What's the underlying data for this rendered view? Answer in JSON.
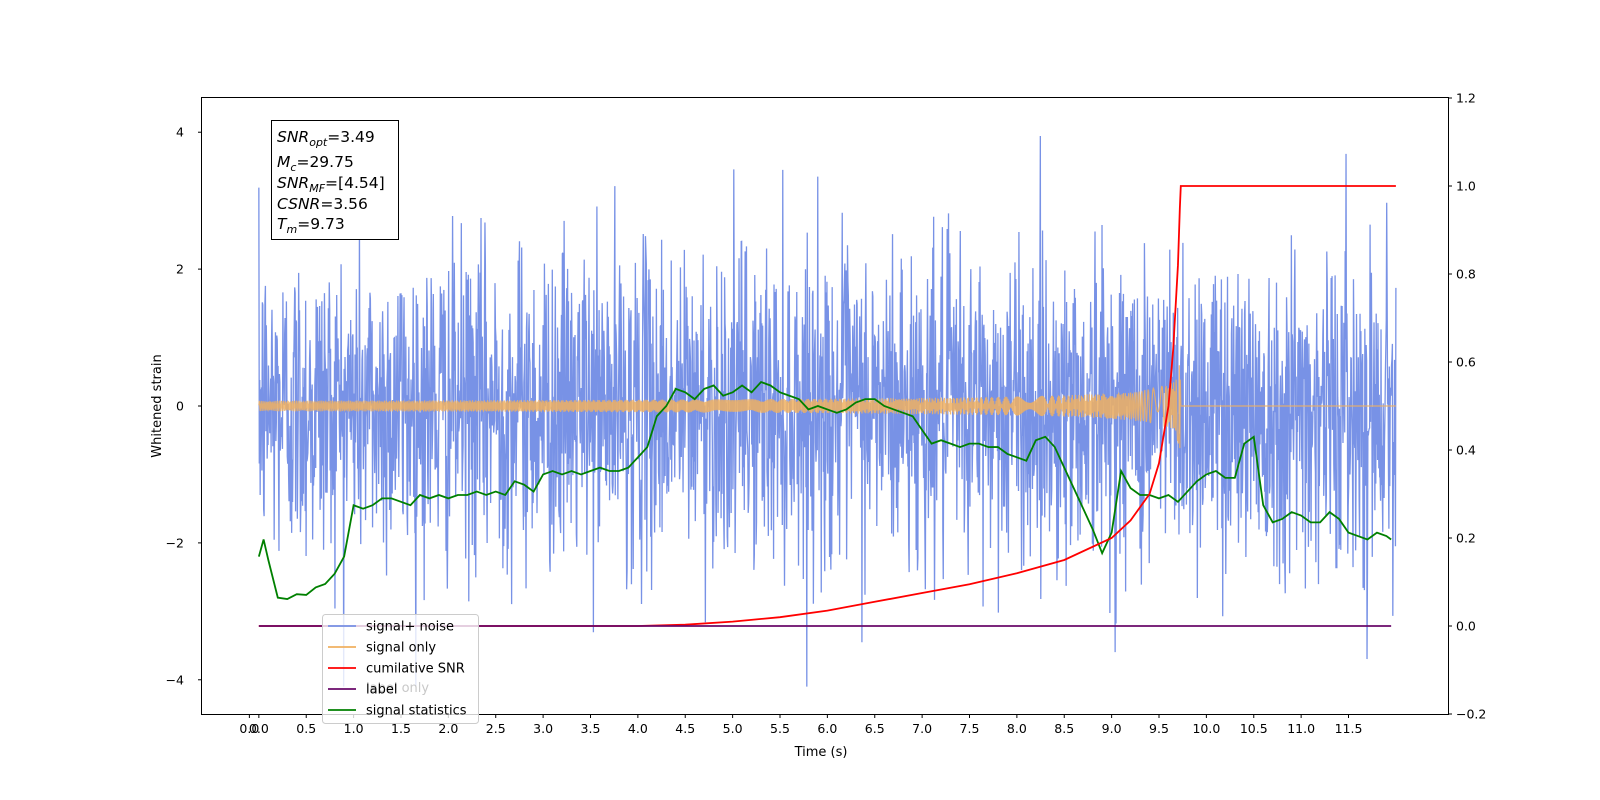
{
  "chart_data": {
    "type": "line",
    "xlabel": "Time (s)",
    "ylabel": "Whitened strain",
    "xlim": [
      -0.6,
      12.55
    ],
    "ylim": [
      -4.5,
      4.5
    ],
    "y2lim": [
      -0.2,
      1.2
    ],
    "x_ticks": [
      "0.0",
      "0.0",
      "0.5",
      "1.0",
      "1.5",
      "2.0",
      "2.5",
      "3.0",
      "3.5",
      "4.0",
      "4.5",
      "5.0",
      "5.5",
      "6.0",
      "6.5",
      "7.0",
      "7.5",
      "8.0",
      "8.5",
      "9.0",
      "9.5",
      "10.0",
      "10.5",
      "11.0",
      "11.5"
    ],
    "y_ticks": [
      "4",
      "2",
      "0",
      "−2",
      "−4"
    ],
    "y2_ticks": [
      "1.2",
      "1.0",
      "0.8",
      "0.6",
      "0.4",
      "0.2",
      "0.0",
      "−0.2"
    ],
    "annotation": {
      "snr_opt": "3.49",
      "mc": "29.75",
      "snr_mf": "[4.54]",
      "csnr": "3.56",
      "tm": "9.73"
    },
    "legend": {
      "location": "lower-left",
      "entries": [
        "signal+ noise",
        "signal only",
        "cumilative SNR",
        "label",
        "signal statistics"
      ],
      "hidden_text": "label only"
    },
    "series": [
      {
        "name": "signal+ noise",
        "color": "#7892e6",
        "axis": "left",
        "x_range": [
          0.0,
          12.0
        ],
        "amplitude_range": [
          -4.1,
          4.1
        ]
      },
      {
        "name": "signal only",
        "color": "#f0b060",
        "axis": "left",
        "x_range": [
          0.0,
          12.0
        ],
        "merger_time": 9.73,
        "peak_amplitude": 0.85
      },
      {
        "name": "cumilative SNR",
        "color": "#ff0000",
        "axis": "right",
        "x": [
          0.0,
          4.0,
          4.5,
          5.0,
          5.5,
          6.0,
          6.5,
          7.0,
          7.5,
          8.0,
          8.5,
          9.0,
          9.2,
          9.4,
          9.5,
          9.6,
          9.65,
          9.7,
          9.72,
          9.73,
          12.0
        ],
        "values": [
          0.0,
          0.0,
          0.003,
          0.01,
          0.02,
          0.035,
          0.055,
          0.075,
          0.095,
          0.12,
          0.15,
          0.2,
          0.24,
          0.3,
          0.37,
          0.5,
          0.63,
          0.82,
          0.95,
          1.0,
          1.0
        ]
      },
      {
        "name": "label",
        "color": "#6a0a6a",
        "axis": "right",
        "x": [
          0.0,
          11.95
        ],
        "values": [
          0.0,
          0.0
        ]
      },
      {
        "name": "signal statistics",
        "color": "#008000",
        "axis": "left",
        "x": [
          0.0,
          0.05,
          0.1,
          0.2,
          0.3,
          0.4,
          0.5,
          0.6,
          0.7,
          0.8,
          0.9,
          1.0,
          1.1,
          1.2,
          1.3,
          1.4,
          1.5,
          1.6,
          1.7,
          1.8,
          1.9,
          2.0,
          2.1,
          2.2,
          2.3,
          2.4,
          2.5,
          2.6,
          2.7,
          2.8,
          2.9,
          3.0,
          3.1,
          3.2,
          3.3,
          3.4,
          3.5,
          3.6,
          3.7,
          3.8,
          3.9,
          4.0,
          4.1,
          4.2,
          4.3,
          4.4,
          4.5,
          4.6,
          4.7,
          4.8,
          4.9,
          5.0,
          5.1,
          5.2,
          5.3,
          5.4,
          5.5,
          5.6,
          5.7,
          5.8,
          5.9,
          6.0,
          6.1,
          6.2,
          6.3,
          6.4,
          6.5,
          6.6,
          6.7,
          6.8,
          6.9,
          7.0,
          7.1,
          7.2,
          7.3,
          7.4,
          7.5,
          7.6,
          7.7,
          7.8,
          7.9,
          8.0,
          8.1,
          8.2,
          8.3,
          8.4,
          8.5,
          8.6,
          8.7,
          8.8,
          8.9,
          9.0,
          9.1,
          9.2,
          9.3,
          9.4,
          9.5,
          9.6,
          9.7,
          9.8,
          9.9,
          10.0,
          10.1,
          10.2,
          10.3,
          10.4,
          10.5,
          10.6,
          10.7,
          10.8,
          10.9,
          11.0,
          11.1,
          11.2,
          11.3,
          11.4,
          11.5,
          11.6,
          11.7,
          11.8,
          11.9,
          11.95
        ],
        "values": [
          -2.2,
          -1.95,
          -2.25,
          -2.8,
          -2.82,
          -2.75,
          -2.76,
          -2.65,
          -2.6,
          -2.45,
          -2.2,
          -1.45,
          -1.5,
          -1.45,
          -1.35,
          -1.35,
          -1.4,
          -1.45,
          -1.3,
          -1.35,
          -1.3,
          -1.35,
          -1.3,
          -1.3,
          -1.25,
          -1.3,
          -1.25,
          -1.3,
          -1.1,
          -1.15,
          -1.25,
          -1.0,
          -0.95,
          -1.0,
          -0.95,
          -1.0,
          -0.95,
          -0.9,
          -0.95,
          -0.95,
          -0.9,
          -0.75,
          -0.6,
          -0.15,
          0.0,
          0.25,
          0.2,
          0.1,
          0.25,
          0.3,
          0.15,
          0.2,
          0.3,
          0.2,
          0.35,
          0.3,
          0.2,
          0.15,
          0.1,
          -0.05,
          0.0,
          -0.05,
          -0.1,
          -0.05,
          0.05,
          0.1,
          0.1,
          0.0,
          -0.05,
          -0.1,
          -0.15,
          -0.35,
          -0.55,
          -0.5,
          -0.55,
          -0.6,
          -0.55,
          -0.55,
          -0.6,
          -0.6,
          -0.7,
          -0.75,
          -0.8,
          -0.5,
          -0.45,
          -0.6,
          -0.9,
          -1.2,
          -1.5,
          -1.8,
          -2.15,
          -1.85,
          -0.95,
          -1.2,
          -1.3,
          -1.3,
          -1.35,
          -1.3,
          -1.4,
          -1.25,
          -1.1,
          -1.0,
          -0.95,
          -1.05,
          -1.05,
          -0.55,
          -0.45,
          -1.45,
          -1.7,
          -1.65,
          -1.55,
          -1.6,
          -1.7,
          -1.7,
          -1.55,
          -1.65,
          -1.85,
          -1.9,
          -1.95,
          -1.85,
          -1.9,
          -1.95
        ]
      }
    ]
  }
}
